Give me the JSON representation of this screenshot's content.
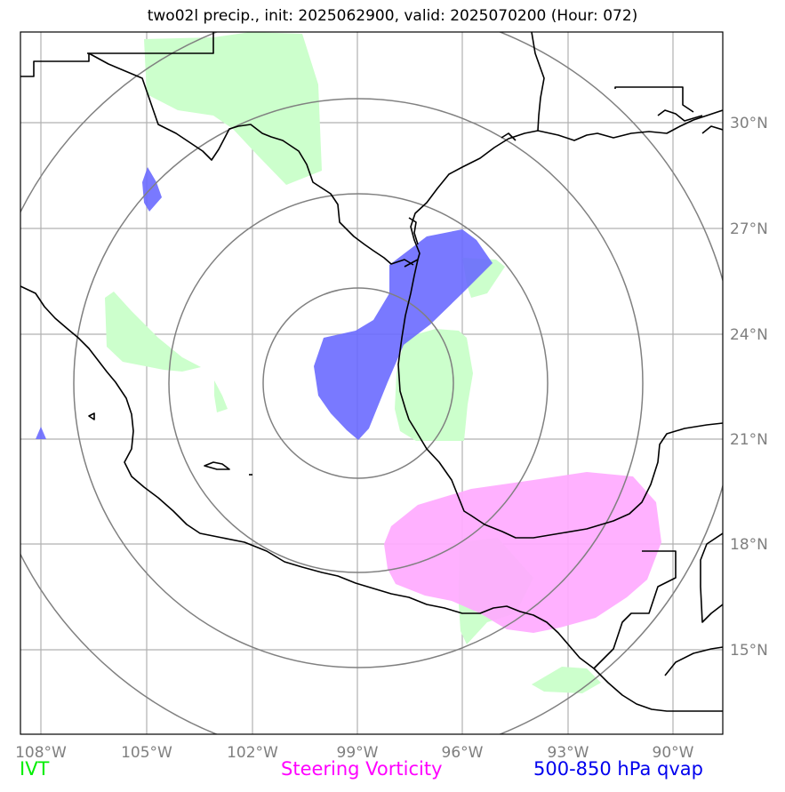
{
  "title": "two02l precip., init: 2025062900, valid: 2025070200 (Hour: 072)",
  "lon_labels": [
    "108°W",
    "105°W",
    "102°W",
    "99°W",
    "96°W",
    "93°W",
    "90°W"
  ],
  "lat_labels": [
    "30°N",
    "27°N",
    "24°N",
    "21°N",
    "18°N",
    "15°N"
  ],
  "legend": {
    "ivt": "IVT",
    "vorticity": "Steering Vorticity",
    "qvap": "500-850 hPa qvap"
  },
  "colors": {
    "ivt": "#ccffcc",
    "vorticity": "#ffaaff",
    "qvap": "#6666ff",
    "grid": "#b0b0b0",
    "range_rings": "#808080",
    "coastline": "#000000"
  }
}
